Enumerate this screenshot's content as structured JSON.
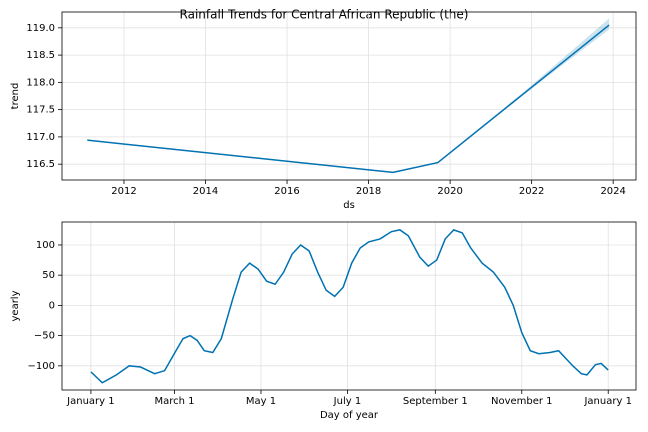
{
  "chart_data": [
    {
      "type": "line",
      "title": "Rainfall Trends for Central African Republic (the)",
      "xlabel": "ds",
      "ylabel": "trend",
      "x": [
        2011.1,
        2018.6,
        2019.7,
        2021.8,
        2023.9
      ],
      "series": [
        {
          "color": "#0072B2",
          "values": [
            116.94,
            116.35,
            116.53,
            117.79,
            119.05
          ]
        }
      ],
      "band": {
        "color": "#0072B2",
        "lower": [
          116.94,
          116.35,
          116.53,
          117.77,
          118.97
        ],
        "upper": [
          116.94,
          116.35,
          116.53,
          117.82,
          119.17
        ]
      },
      "xlim": [
        2010.48,
        2024.56
      ],
      "ylim": [
        116.21,
        119.29
      ],
      "xticks": [
        2012,
        2014,
        2016,
        2018,
        2020,
        2022,
        2024
      ],
      "yticks": [
        116.5,
        {
          "value": 117,
          "label": "117.0"
        },
        117.5,
        {
          "value": 118,
          "label": "118.0"
        },
        118.5,
        {
          "value": 119,
          "label": "119.0"
        }
      ],
      "grid": true
    },
    {
      "type": "line",
      "xlabel": "Day of year",
      "ylabel": "yearly",
      "x": [
        0,
        8,
        18,
        27,
        35,
        45,
        52,
        60,
        65,
        70,
        75,
        80,
        86,
        92,
        100,
        106,
        112,
        118,
        124,
        130,
        136,
        142,
        148,
        154,
        160,
        166,
        172,
        178,
        184,
        190,
        196,
        204,
        212,
        218,
        224,
        232,
        238,
        244,
        250,
        256,
        262,
        268,
        276,
        284,
        292,
        298,
        304,
        310,
        316,
        324,
        330,
        340,
        346,
        350,
        356,
        360,
        365
      ],
      "series": [
        {
          "color": "#0072B2",
          "values": [
            -110,
            -128,
            -115,
            -100,
            -102,
            -113,
            -108,
            -75,
            -55,
            -50,
            -58,
            -75,
            -78,
            -55,
            10,
            55,
            70,
            60,
            40,
            35,
            55,
            85,
            100,
            90,
            55,
            25,
            15,
            30,
            70,
            95,
            105,
            110,
            122,
            125,
            115,
            80,
            65,
            75,
            110,
            125,
            120,
            95,
            70,
            55,
            30,
            0,
            -45,
            -75,
            -80,
            -78,
            -75,
            -100,
            -113,
            -115,
            -98,
            -96,
            -107
          ]
        }
      ],
      "xlim": [
        -20.4,
        384.6
      ],
      "ylim": [
        -140,
        138
      ],
      "xticks": [
        {
          "value": 0,
          "label": "January 1"
        },
        {
          "value": 59,
          "label": "March 1"
        },
        {
          "value": 120,
          "label": "May 1"
        },
        {
          "value": 181,
          "label": "July 1"
        },
        {
          "value": 243,
          "label": "September 1"
        },
        {
          "value": 304,
          "label": "November 1"
        },
        {
          "value": 365,
          "label": "January 1"
        }
      ],
      "yticks": [
        {
          "value": -100,
          "label": "−100"
        },
        {
          "value": -50,
          "label": "−50"
        },
        0,
        50,
        100
      ],
      "grid": true
    }
  ]
}
